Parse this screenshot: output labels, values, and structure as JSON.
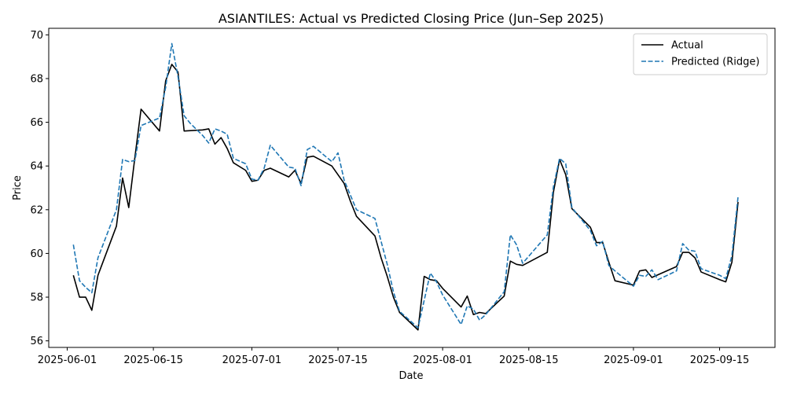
{
  "chart_data": {
    "type": "line",
    "title": "ASIANTILES: Actual vs Predicted Closing Price (Jun–Sep 2025)",
    "xlabel": "Date",
    "ylabel": "Price",
    "xlim": [
      "2025-05-29",
      "2025-09-24"
    ],
    "ylim": [
      55.7,
      70.3
    ],
    "x_ticks": [
      "2025-06-01",
      "2025-06-15",
      "2025-07-01",
      "2025-07-15",
      "2025-08-01",
      "2025-08-15",
      "2025-09-01",
      "2025-09-15"
    ],
    "y_ticks": [
      56,
      58,
      60,
      62,
      64,
      66,
      68,
      70
    ],
    "grid": false,
    "legend_position": "upper right",
    "series": [
      {
        "name": "Actual",
        "color": "#000000",
        "style": "solid",
        "points": [
          [
            "2025-06-02",
            59.0
          ],
          [
            "2025-06-03",
            58.0
          ],
          [
            "2025-06-04",
            58.0
          ],
          [
            "2025-06-05",
            57.4
          ],
          [
            "2025-06-06",
            59.0
          ],
          [
            "2025-06-09",
            61.25
          ],
          [
            "2025-06-10",
            63.45
          ],
          [
            "2025-06-11",
            62.1
          ],
          [
            "2025-06-12",
            64.4
          ],
          [
            "2025-06-13",
            66.6
          ],
          [
            "2025-06-16",
            65.6
          ],
          [
            "2025-06-17",
            67.9
          ],
          [
            "2025-06-18",
            68.65
          ],
          [
            "2025-06-19",
            68.3
          ],
          [
            "2025-06-20",
            65.6
          ],
          [
            "2025-06-23",
            65.65
          ],
          [
            "2025-06-24",
            65.7
          ],
          [
            "2025-06-25",
            65.0
          ],
          [
            "2025-06-26",
            65.3
          ],
          [
            "2025-06-27",
            64.8
          ],
          [
            "2025-06-28",
            64.15
          ],
          [
            "2025-06-30",
            63.8
          ],
          [
            "2025-07-01",
            63.3
          ],
          [
            "2025-07-02",
            63.35
          ],
          [
            "2025-07-03",
            63.8
          ],
          [
            "2025-07-04",
            63.9
          ],
          [
            "2025-07-07",
            63.5
          ],
          [
            "2025-07-08",
            63.8
          ],
          [
            "2025-07-09",
            63.2
          ],
          [
            "2025-07-10",
            64.4
          ],
          [
            "2025-07-11",
            64.45
          ],
          [
            "2025-07-14",
            64.0
          ],
          [
            "2025-07-15",
            63.6
          ],
          [
            "2025-07-16",
            63.2
          ],
          [
            "2025-07-17",
            62.4
          ],
          [
            "2025-07-18",
            61.7
          ],
          [
            "2025-07-21",
            60.8
          ],
          [
            "2025-07-22",
            59.8
          ],
          [
            "2025-07-23",
            58.95
          ],
          [
            "2025-07-24",
            58.0
          ],
          [
            "2025-07-25",
            57.3
          ],
          [
            "2025-07-28",
            56.5
          ],
          [
            "2025-07-29",
            58.95
          ],
          [
            "2025-07-30",
            58.8
          ],
          [
            "2025-07-31",
            58.75
          ],
          [
            "2025-08-01",
            58.4
          ],
          [
            "2025-08-04",
            57.55
          ],
          [
            "2025-08-05",
            58.05
          ],
          [
            "2025-08-06",
            57.2
          ],
          [
            "2025-08-07",
            57.3
          ],
          [
            "2025-08-08",
            57.25
          ],
          [
            "2025-08-11",
            58.05
          ],
          [
            "2025-08-12",
            59.65
          ],
          [
            "2025-08-13",
            59.5
          ],
          [
            "2025-08-14",
            59.45
          ],
          [
            "2025-08-18",
            60.05
          ],
          [
            "2025-08-19",
            62.8
          ],
          [
            "2025-08-20",
            64.3
          ],
          [
            "2025-08-21",
            63.6
          ],
          [
            "2025-08-22",
            62.05
          ],
          [
            "2025-08-25",
            61.2
          ],
          [
            "2025-08-26",
            60.5
          ],
          [
            "2025-08-27",
            60.5
          ],
          [
            "2025-08-28",
            59.6
          ],
          [
            "2025-08-29",
            58.75
          ],
          [
            "2025-09-01",
            58.55
          ],
          [
            "2025-09-02",
            59.2
          ],
          [
            "2025-09-03",
            59.25
          ],
          [
            "2025-09-04",
            58.9
          ],
          [
            "2025-09-08",
            59.4
          ],
          [
            "2025-09-09",
            60.05
          ],
          [
            "2025-09-10",
            60.05
          ],
          [
            "2025-09-11",
            59.8
          ],
          [
            "2025-09-12",
            59.15
          ],
          [
            "2025-09-15",
            58.8
          ],
          [
            "2025-09-16",
            58.7
          ],
          [
            "2025-09-17",
            59.6
          ],
          [
            "2025-09-18",
            62.35
          ]
        ]
      },
      {
        "name": "Predicted (Ridge)",
        "color": "#1f77b4",
        "style": "dashed",
        "points": [
          [
            "2025-06-02",
            60.4
          ],
          [
            "2025-06-03",
            58.75
          ],
          [
            "2025-06-04",
            58.45
          ],
          [
            "2025-06-05",
            58.2
          ],
          [
            "2025-06-06",
            59.8
          ],
          [
            "2025-06-09",
            62.0
          ],
          [
            "2025-06-10",
            64.3
          ],
          [
            "2025-06-11",
            64.2
          ],
          [
            "2025-06-12",
            64.25
          ],
          [
            "2025-06-13",
            65.85
          ],
          [
            "2025-06-16",
            66.2
          ],
          [
            "2025-06-17",
            67.6
          ],
          [
            "2025-06-18",
            69.6
          ],
          [
            "2025-06-19",
            68.1
          ],
          [
            "2025-06-20",
            66.3
          ],
          [
            "2025-06-21",
            65.95
          ],
          [
            "2025-06-23",
            65.4
          ],
          [
            "2025-06-24",
            65.05
          ],
          [
            "2025-06-25",
            65.7
          ],
          [
            "2025-06-26",
            65.6
          ],
          [
            "2025-06-27",
            65.45
          ],
          [
            "2025-06-28",
            64.35
          ],
          [
            "2025-06-30",
            64.1
          ],
          [
            "2025-07-01",
            63.4
          ],
          [
            "2025-07-02",
            63.35
          ],
          [
            "2025-07-03",
            63.9
          ],
          [
            "2025-07-04",
            64.95
          ],
          [
            "2025-07-07",
            63.95
          ],
          [
            "2025-07-08",
            63.9
          ],
          [
            "2025-07-09",
            63.1
          ],
          [
            "2025-07-10",
            64.75
          ],
          [
            "2025-07-11",
            64.9
          ],
          [
            "2025-07-14",
            64.2
          ],
          [
            "2025-07-15",
            64.6
          ],
          [
            "2025-07-16",
            63.35
          ],
          [
            "2025-07-18",
            62.0
          ],
          [
            "2025-07-21",
            61.6
          ],
          [
            "2025-07-22",
            60.55
          ],
          [
            "2025-07-23",
            59.5
          ],
          [
            "2025-07-24",
            58.25
          ],
          [
            "2025-07-25",
            57.35
          ],
          [
            "2025-07-28",
            56.6
          ],
          [
            "2025-07-30",
            59.1
          ],
          [
            "2025-07-31",
            58.7
          ],
          [
            "2025-08-01",
            58.1
          ],
          [
            "2025-08-04",
            56.75
          ],
          [
            "2025-08-05",
            57.6
          ],
          [
            "2025-08-06",
            57.45
          ],
          [
            "2025-08-07",
            56.95
          ],
          [
            "2025-08-08",
            57.2
          ],
          [
            "2025-08-11",
            58.25
          ],
          [
            "2025-08-12",
            60.85
          ],
          [
            "2025-08-13",
            60.4
          ],
          [
            "2025-08-14",
            59.55
          ],
          [
            "2025-08-18",
            60.85
          ],
          [
            "2025-08-19",
            63.05
          ],
          [
            "2025-08-20",
            64.35
          ],
          [
            "2025-08-21",
            64.1
          ],
          [
            "2025-08-22",
            62.1
          ],
          [
            "2025-08-25",
            61.05
          ],
          [
            "2025-08-26",
            60.35
          ],
          [
            "2025-08-27",
            60.55
          ],
          [
            "2025-08-28",
            59.45
          ],
          [
            "2025-08-29",
            59.2
          ],
          [
            "2025-09-01",
            58.5
          ],
          [
            "2025-09-02",
            59.0
          ],
          [
            "2025-09-03",
            58.95
          ],
          [
            "2025-09-04",
            59.25
          ],
          [
            "2025-09-05",
            58.8
          ],
          [
            "2025-09-08",
            59.2
          ],
          [
            "2025-09-09",
            60.45
          ],
          [
            "2025-09-10",
            60.15
          ],
          [
            "2025-09-11",
            60.1
          ],
          [
            "2025-09-12",
            59.3
          ],
          [
            "2025-09-15",
            59.0
          ],
          [
            "2025-09-16",
            58.85
          ],
          [
            "2025-09-17",
            59.9
          ],
          [
            "2025-09-18",
            62.6
          ]
        ]
      }
    ]
  }
}
